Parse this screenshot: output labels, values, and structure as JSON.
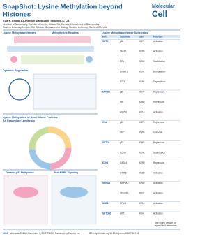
{
  "header": {
    "title_lines": [
      "SnapShot: Lysine Methylation beyond",
      "Histones"
    ],
    "journal": [
      "Molecular",
      "Cell"
    ],
    "authors": "Kyle K. Biggar,1,2 Zhentian Wang,3 and Shawn S.-C. Li3",
    "affiliations": [
      "1Institute of Biochemistry, Carleton University, Ottawa, ON, Canada, 2Department of Biochemistry,",
      "Western University, London, ON, Canada, 3Department of Biology, Stanford University, Stanford, CA, USA"
    ]
  },
  "sections": {
    "kmt": "Lysine Methyltransferases",
    "readers": "Methyllysine Readers",
    "regulation": "Dynamic Regulation",
    "landscape": [
      "Lysine Methylation of Non-histone Proteins:",
      "An Expanding Landscape"
    ],
    "p53": "Dynamic p53 Methylation",
    "signaling": "Non-MAPK Signaling"
  },
  "table": {
    "title": "Lysine Methyltransferase Substrates",
    "columns": [
      "KMT",
      "Substrate",
      "Site",
      "Function"
    ],
    "rows": [
      [
        "SETD7",
        "p53",
        "K372",
        "Activation"
      ],
      [
        "",
        "TAF10",
        "K189",
        "Activation"
      ],
      [
        "",
        "ERα",
        "K302",
        "Stabilization"
      ],
      [
        "",
        "DNMT1",
        "K142",
        "Degradation"
      ],
      [
        "",
        "E2F1",
        "K185",
        "Degradation"
      ],
      [
        "SMYD2",
        "p53",
        "K370",
        "Repression"
      ],
      [
        "",
        "RB",
        "K860",
        "Repression"
      ],
      [
        "",
        "HSP90",
        "K616",
        "Activation"
      ],
      [
        "G9a",
        "p53",
        "K373",
        "Repression"
      ],
      [
        "",
        "WIZ",
        "K305",
        "Unknown"
      ],
      [
        "SETD8",
        "p53",
        "K382",
        "Repression"
      ],
      [
        "",
        "PCNA",
        "K248",
        "Stabilization"
      ],
      [
        "EZH2",
        "GATA4",
        "K299",
        "Repression"
      ],
      [
        "",
        "STAT3",
        "K180",
        "Activation"
      ],
      [
        "SMYD3",
        "MAP3K2",
        "K260",
        "Activation"
      ],
      [
        "",
        "VEGFR1",
        "K831",
        "Activation"
      ],
      [
        "NSD1",
        "NF-κB",
        "K218",
        "Activation"
      ],
      [
        "SETDB1",
        "AKT1",
        "K64",
        "Activation"
      ]
    ]
  },
  "footer": {
    "page": "1019",
    "citation": "Molecular Cell 68, December 7, 2017 © 2017 Published by Elsevier Inc.",
    "doi": "DOI http://dx.doi.org/10.1016/j.molcel.2017.11.018",
    "note": [
      "See online version for",
      "legend and references."
    ]
  }
}
